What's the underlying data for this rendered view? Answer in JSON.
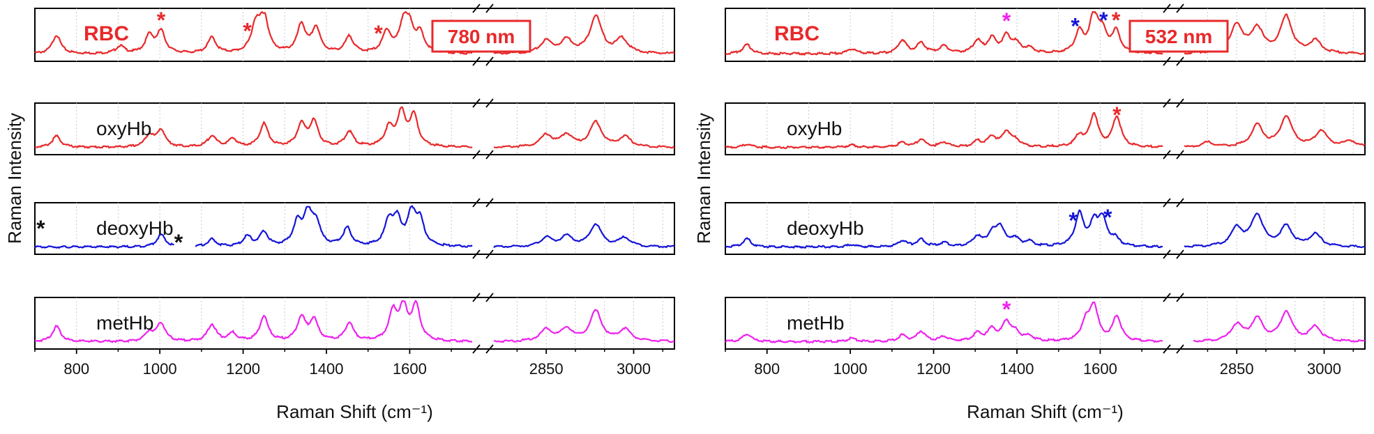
{
  "chart_data": [
    {
      "type": "line",
      "xlabel": "Raman Shift (cm⁻¹)",
      "ylabel": "Raman Intensity",
      "x_segments": [
        {
          "range": [
            700,
            1750
          ],
          "ticks": [
            800,
            1000,
            1200,
            1400,
            1600
          ],
          "minor_ticks": [
            700,
            900,
            1100,
            1300,
            1500,
            1700
          ]
        },
        {
          "range": [
            2760,
            3070
          ],
          "ticks": [
            2850,
            3000
          ],
          "minor_ticks": [
            2800,
            2900,
            2950,
            3050
          ]
        }
      ],
      "axis_break": "//",
      "grid": "vertical dotted",
      "laser_label": "780 nm",
      "panels": [
        {
          "name": "RBC",
          "color": "#e8292b",
          "peaks": [
            [
              752,
              0.45
            ],
            [
              905,
              0.18
            ],
            [
              975,
              0.42
            ],
            [
              1003,
              0.52
            ],
            [
              1125,
              0.38
            ],
            [
              1230,
              0.65
            ],
            [
              1250,
              0.9
            ],
            [
              1340,
              0.68
            ],
            [
              1375,
              0.6
            ],
            [
              1455,
              0.4
            ],
            [
              1545,
              0.52
            ],
            [
              1585,
              0.68
            ],
            [
              1600,
              0.55
            ],
            [
              1625,
              0.45
            ],
            [
              2850,
              0.3
            ],
            [
              2885,
              0.32
            ],
            [
              2935,
              0.9
            ],
            [
              2980,
              0.35
            ]
          ],
          "asterisks": [
            [
              1003,
              "#e8292b"
            ],
            [
              1210,
              "#e8292b"
            ],
            [
              1525,
              "#e8292b"
            ]
          ]
        },
        {
          "name": "oxyHb",
          "color": "#e8292b",
          "peaks": [
            [
              752,
              0.28
            ],
            [
              975,
              0.3
            ],
            [
              1003,
              0.42
            ],
            [
              1125,
              0.28
            ],
            [
              1175,
              0.2
            ],
            [
              1250,
              0.58
            ],
            [
              1340,
              0.55
            ],
            [
              1370,
              0.62
            ],
            [
              1455,
              0.38
            ],
            [
              1550,
              0.45
            ],
            [
              1580,
              0.82
            ],
            [
              1610,
              0.76
            ],
            [
              2850,
              0.3
            ],
            [
              2885,
              0.3
            ],
            [
              2935,
              0.62
            ],
            [
              2985,
              0.25
            ]
          ],
          "asterisks": []
        },
        {
          "name": "deoxyHb",
          "color": "#1414d8",
          "peaks": [
            [
              1003,
              0.3
            ],
            [
              1125,
              0.18
            ],
            [
              1210,
              0.25
            ],
            [
              1250,
              0.35
            ],
            [
              1330,
              0.55
            ],
            [
              1355,
              0.78
            ],
            [
              1375,
              0.55
            ],
            [
              1450,
              0.45
            ],
            [
              1550,
              0.6
            ],
            [
              1570,
              0.6
            ],
            [
              1605,
              0.8
            ],
            [
              1625,
              0.58
            ],
            [
              2850,
              0.22
            ],
            [
              2885,
              0.25
            ],
            [
              2935,
              0.55
            ],
            [
              2985,
              0.22
            ]
          ],
          "asterisks": [
            [
              714,
              "#111111"
            ],
            [
              1045,
              "#111111"
            ]
          ],
          "gap": [
            1035,
            1085
          ]
        },
        {
          "name": "metHb",
          "color": "#ee22ee",
          "peaks": [
            [
              752,
              0.38
            ],
            [
              975,
              0.22
            ],
            [
              1003,
              0.45
            ],
            [
              1125,
              0.42
            ],
            [
              1175,
              0.2
            ],
            [
              1250,
              0.62
            ],
            [
              1340,
              0.58
            ],
            [
              1370,
              0.52
            ],
            [
              1455,
              0.45
            ],
            [
              1560,
              0.7
            ],
            [
              1585,
              0.78
            ],
            [
              1615,
              0.85
            ],
            [
              2850,
              0.3
            ],
            [
              2885,
              0.3
            ],
            [
              2935,
              0.75
            ],
            [
              2985,
              0.3
            ]
          ],
          "asterisks": []
        }
      ]
    },
    {
      "type": "line",
      "xlabel": "Raman Shift (cm⁻¹)",
      "ylabel": "Raman Intensity",
      "x_segments": [
        {
          "range": [
            700,
            1750
          ],
          "ticks": [
            800,
            1000,
            1200,
            1400,
            1600
          ],
          "minor_ticks": [
            700,
            900,
            1100,
            1300,
            1500,
            1700
          ]
        },
        {
          "range": [
            2760,
            3070
          ],
          "ticks": [
            2850,
            3000
          ],
          "minor_ticks": [
            2800,
            2900,
            2950,
            3050
          ]
        }
      ],
      "axis_break": "//",
      "grid": "vertical dotted",
      "laser_label": "532 nm",
      "panels": [
        {
          "name": "RBC",
          "color": "#e8292b",
          "peaks": [
            [
              752,
              0.22
            ],
            [
              1003,
              0.12
            ],
            [
              1125,
              0.32
            ],
            [
              1170,
              0.25
            ],
            [
              1225,
              0.18
            ],
            [
              1305,
              0.3
            ],
            [
              1340,
              0.35
            ],
            [
              1375,
              0.4
            ],
            [
              1398,
              0.22
            ],
            [
              1430,
              0.12
            ],
            [
              1550,
              0.5
            ],
            [
              1585,
              0.92
            ],
            [
              1605,
              0.45
            ],
            [
              1638,
              0.52
            ],
            [
              2850,
              0.7
            ],
            [
              2885,
              0.6
            ],
            [
              2935,
              0.88
            ],
            [
              2985,
              0.3
            ]
          ],
          "asterisks": [
            [
              1375,
              "#ee22ee"
            ],
            [
              1540,
              "#1414d8"
            ],
            [
              1608,
              "#1414d8"
            ],
            [
              1638,
              "#e8292b"
            ]
          ]
        },
        {
          "name": "oxyHb",
          "color": "#e8292b",
          "peaks": [
            [
              752,
              0.08
            ],
            [
              1003,
              0.06
            ],
            [
              1125,
              0.12
            ],
            [
              1170,
              0.2
            ],
            [
              1225,
              0.12
            ],
            [
              1305,
              0.14
            ],
            [
              1340,
              0.25
            ],
            [
              1375,
              0.38
            ],
            [
              1398,
              0.15
            ],
            [
              1550,
              0.28
            ],
            [
              1585,
              0.8
            ],
            [
              1640,
              0.75
            ],
            [
              2800,
              0.12
            ],
            [
              2885,
              0.55
            ],
            [
              2935,
              0.75
            ],
            [
              2995,
              0.4
            ],
            [
              3045,
              0.15
            ]
          ],
          "asterisks": [
            [
              1640,
              "#e8292b"
            ]
          ]
        },
        {
          "name": "deoxyHb",
          "color": "#1414d8",
          "peaks": [
            [
              752,
              0.2
            ],
            [
              1003,
              0.06
            ],
            [
              1125,
              0.15
            ],
            [
              1170,
              0.18
            ],
            [
              1225,
              0.1
            ],
            [
              1305,
              0.25
            ],
            [
              1340,
              0.3
            ],
            [
              1360,
              0.48
            ],
            [
              1395,
              0.2
            ],
            [
              1430,
              0.12
            ],
            [
              1550,
              0.8
            ],
            [
              1585,
              0.52
            ],
            [
              1605,
              0.65
            ],
            [
              1635,
              0.18
            ],
            [
              2850,
              0.45
            ],
            [
              2885,
              0.78
            ],
            [
              2935,
              0.5
            ],
            [
              2985,
              0.3
            ]
          ],
          "asterisks": [
            [
              1535,
              "#1414d8"
            ],
            [
              1618,
              "#1414d8"
            ]
          ]
        },
        {
          "name": "metHb",
          "color": "#ee22ee",
          "peaks": [
            [
              752,
              0.2
            ],
            [
              1003,
              0.08
            ],
            [
              1125,
              0.15
            ],
            [
              1170,
              0.25
            ],
            [
              1225,
              0.12
            ],
            [
              1305,
              0.2
            ],
            [
              1340,
              0.3
            ],
            [
              1375,
              0.48
            ],
            [
              1398,
              0.2
            ],
            [
              1430,
              0.12
            ],
            [
              1565,
              0.45
            ],
            [
              1585,
              0.85
            ],
            [
              1640,
              0.62
            ],
            [
              2850,
              0.4
            ],
            [
              2885,
              0.55
            ],
            [
              2935,
              0.72
            ],
            [
              2985,
              0.35
            ]
          ],
          "asterisks": [
            [
              1375,
              "#ee22ee"
            ]
          ],
          "gap": [
            2745,
            2775
          ]
        }
      ]
    }
  ]
}
